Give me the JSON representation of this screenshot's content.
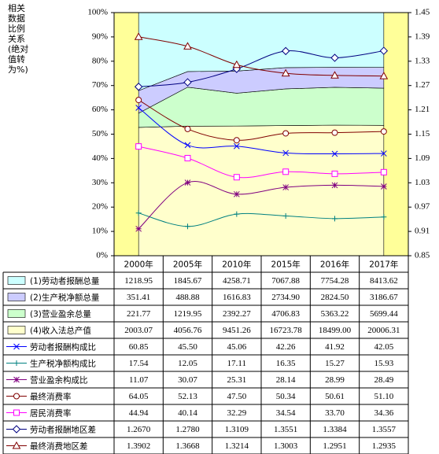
{
  "chart_data": {
    "type": "combo",
    "y_label": "相关数据比例关系(绝对值转为%)",
    "categories": [
      "2000年",
      "2005年",
      "2010年",
      "2015年",
      "2016年",
      "2017年"
    ],
    "ylim": [
      0,
      100
    ],
    "yticks": [
      {
        "value": 0,
        "label": "0%"
      },
      {
        "value": 10,
        "label": "10%"
      },
      {
        "value": 20,
        "label": "20%"
      },
      {
        "value": 30,
        "label": "30%"
      },
      {
        "value": 40,
        "label": "40%"
      },
      {
        "value": 50,
        "label": "50%"
      },
      {
        "value": 60,
        "label": "60%"
      },
      {
        "value": 70,
        "label": "70%"
      },
      {
        "value": 80,
        "label": "80%"
      },
      {
        "value": 90,
        "label": "90%"
      },
      {
        "value": 100,
        "label": "100%"
      }
    ],
    "y2lim": [
      0.85,
      1.45
    ],
    "y2ticks": [
      0.85,
      0.91,
      0.97,
      1.03,
      1.09,
      1.15,
      1.21,
      1.27,
      1.33,
      1.39,
      1.45
    ],
    "plot_background": "#ffff99",
    "area_stacking": "percent",
    "series": [
      {
        "name": "(1)劳动者报酬总量",
        "kind": "area",
        "color": "#ccffff",
        "values": [
          1218.95,
          1845.67,
          4258.71,
          7067.88,
          7754.28,
          8413.62
        ],
        "value_labels": [
          "1218.95",
          "1845.67",
          "4258.71",
          "7067.88",
          "7754.28",
          "8413.62"
        ]
      },
      {
        "name": "(2)生产税净额总量",
        "kind": "area",
        "color": "#ccccff",
        "values": [
          351.41,
          488.88,
          1616.83,
          2734.9,
          2824.5,
          3186.67
        ],
        "value_labels": [
          "351.41",
          "488.88",
          "1616.83",
          "2734.90",
          "2824.50",
          "3186.67"
        ]
      },
      {
        "name": "(3)营业盈余总量",
        "kind": "area",
        "color": "#ccffcc",
        "values": [
          221.77,
          1219.95,
          2392.27,
          4706.83,
          5363.22,
          5699.44
        ],
        "value_labels": [
          "221.77",
          "1219.95",
          "2392.27",
          "4706.83",
          "5363.22",
          "5699.44"
        ]
      },
      {
        "name": "(4)收入法总产值",
        "kind": "area",
        "color": "#ffffcc",
        "values": [
          2003.07,
          4056.76,
          9451.26,
          16723.78,
          18499.0,
          20006.31
        ],
        "value_labels": [
          "2003.07",
          "4056.76",
          "9451.26",
          "16723.78",
          "18499.00",
          "20006.31"
        ]
      },
      {
        "name": "劳动者报酬构成比",
        "kind": "line",
        "marker": "x",
        "color": "#0000ff",
        "values": [
          60.85,
          45.5,
          45.06,
          42.26,
          41.92,
          42.05
        ],
        "value_labels": [
          "60.85",
          "45.50",
          "45.06",
          "42.26",
          "41.92",
          "42.05"
        ]
      },
      {
        "name": "生产税净额构成比",
        "kind": "line",
        "marker": "plus",
        "color": "#008080",
        "values": [
          17.54,
          12.05,
          17.11,
          16.35,
          15.27,
          15.93
        ],
        "value_labels": [
          "17.54",
          "12.05",
          "17.11",
          "16.35",
          "15.27",
          "15.93"
        ]
      },
      {
        "name": "营业盈余构成比",
        "kind": "line",
        "marker": "star",
        "color": "#800080",
        "values": [
          11.07,
          30.07,
          25.31,
          28.14,
          28.99,
          28.49
        ],
        "value_labels": [
          "11.07",
          "30.07",
          "25.31",
          "28.14",
          "28.99",
          "28.49"
        ]
      },
      {
        "name": "最终消费率",
        "kind": "line",
        "marker": "circle",
        "color": "#800000",
        "values": [
          64.05,
          52.13,
          47.5,
          50.34,
          50.61,
          51.1
        ],
        "value_labels": [
          "64.05",
          "52.13",
          "47.50",
          "50.34",
          "50.61",
          "51.10"
        ]
      },
      {
        "name": "居民消费率",
        "kind": "line",
        "marker": "square",
        "color": "#ff00ff",
        "values": [
          44.94,
          40.14,
          32.29,
          34.54,
          33.7,
          34.36
        ],
        "value_labels": [
          "44.94",
          "40.14",
          "32.29",
          "34.54",
          "33.70",
          "34.36"
        ]
      },
      {
        "name": "劳动者报酬地区差",
        "kind": "line",
        "marker": "diamond",
        "axis": "y2",
        "color": "#000080",
        "values": [
          1.267,
          1.278,
          1.3109,
          1.3551,
          1.3384,
          1.3557
        ],
        "value_labels": [
          "1.2670",
          "1.2780",
          "1.3109",
          "1.3551",
          "1.3384",
          "1.3557"
        ]
      },
      {
        "name": "最终消费地区差",
        "kind": "line",
        "marker": "triangle",
        "axis": "y2",
        "color": "#800000",
        "values": [
          1.3902,
          1.3668,
          1.3214,
          1.3003,
          1.2951,
          1.2935
        ],
        "value_labels": [
          "1.3902",
          "1.3668",
          "1.3214",
          "1.3003",
          "1.2951",
          "1.2935"
        ]
      }
    ]
  }
}
